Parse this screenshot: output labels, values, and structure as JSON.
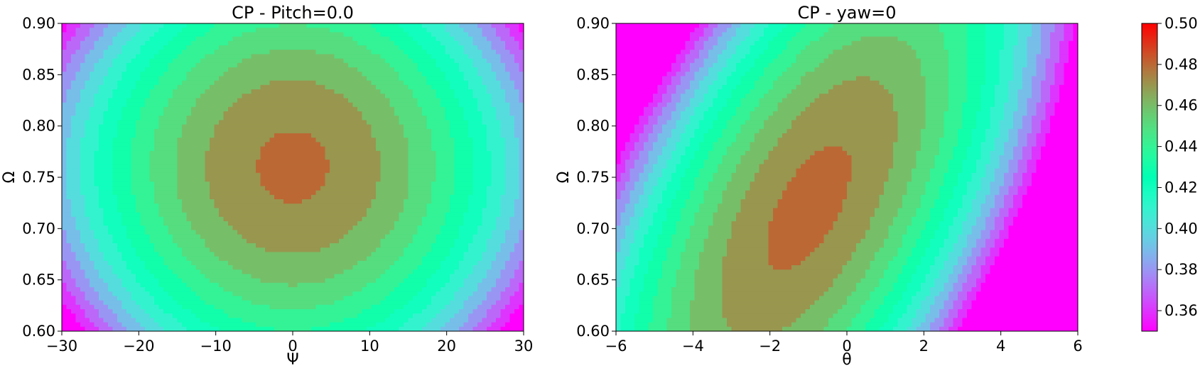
{
  "chart_data": [
    {
      "type": "contourf",
      "title": "CP - Pitch=0.0",
      "xlabel": "Ψ",
      "ylabel": "Ω",
      "xlim": [
        -30,
        30
      ],
      "ylim": [
        0.6,
        0.9
      ],
      "xticks": [
        "−30",
        "−20",
        "−10",
        "0",
        "10",
        "20",
        "30"
      ],
      "xtick_values": [
        -30,
        -20,
        -10,
        0,
        10,
        20,
        30
      ],
      "yticks": [
        "0.60",
        "0.65",
        "0.70",
        "0.75",
        "0.80",
        "0.85",
        "0.90"
      ],
      "ytick_values": [
        0.6,
        0.65,
        0.7,
        0.75,
        0.8,
        0.85,
        0.9
      ],
      "peak": {
        "x": 0,
        "y": 0.76,
        "value": 0.475
      },
      "contour_levels": [
        0.355,
        0.365,
        0.375,
        0.385,
        0.395,
        0.405,
        0.415,
        0.425,
        0.435,
        0.445,
        0.455,
        0.465,
        0.475
      ],
      "colormap": "rainbow"
    },
    {
      "type": "contourf",
      "title": "CP - yaw=0",
      "xlabel": "θ",
      "ylabel": "Ω",
      "xlim": [
        -6,
        6
      ],
      "ylim": [
        0.6,
        0.9
      ],
      "xticks": [
        "−6",
        "−4",
        "−2",
        "0",
        "2",
        "4",
        "6"
      ],
      "xtick_values": [
        -6,
        -4,
        -2,
        0,
        2,
        4,
        6
      ],
      "yticks": [
        "0.60",
        "0.65",
        "0.70",
        "0.75",
        "0.80",
        "0.85",
        "0.90"
      ],
      "ytick_values": [
        0.6,
        0.65,
        0.7,
        0.75,
        0.8,
        0.85,
        0.9
      ],
      "peak": {
        "x": -1,
        "y": 0.72,
        "value": 0.485
      },
      "contour_levels": [
        0.355,
        0.365,
        0.375,
        0.385,
        0.395,
        0.405,
        0.415,
        0.425,
        0.435,
        0.445,
        0.455,
        0.465,
        0.475
      ],
      "colormap": "rainbow"
    }
  ],
  "colorbar": {
    "range": [
      0.35,
      0.5
    ],
    "tick_values": [
      0.36,
      0.38,
      0.4,
      0.42,
      0.44,
      0.46,
      0.48,
      0.5
    ],
    "tick_labels": [
      "0.36",
      "0.38",
      "0.40",
      "0.42",
      "0.44",
      "0.46",
      "0.48",
      "0.50"
    ],
    "colormap": "rainbow"
  }
}
